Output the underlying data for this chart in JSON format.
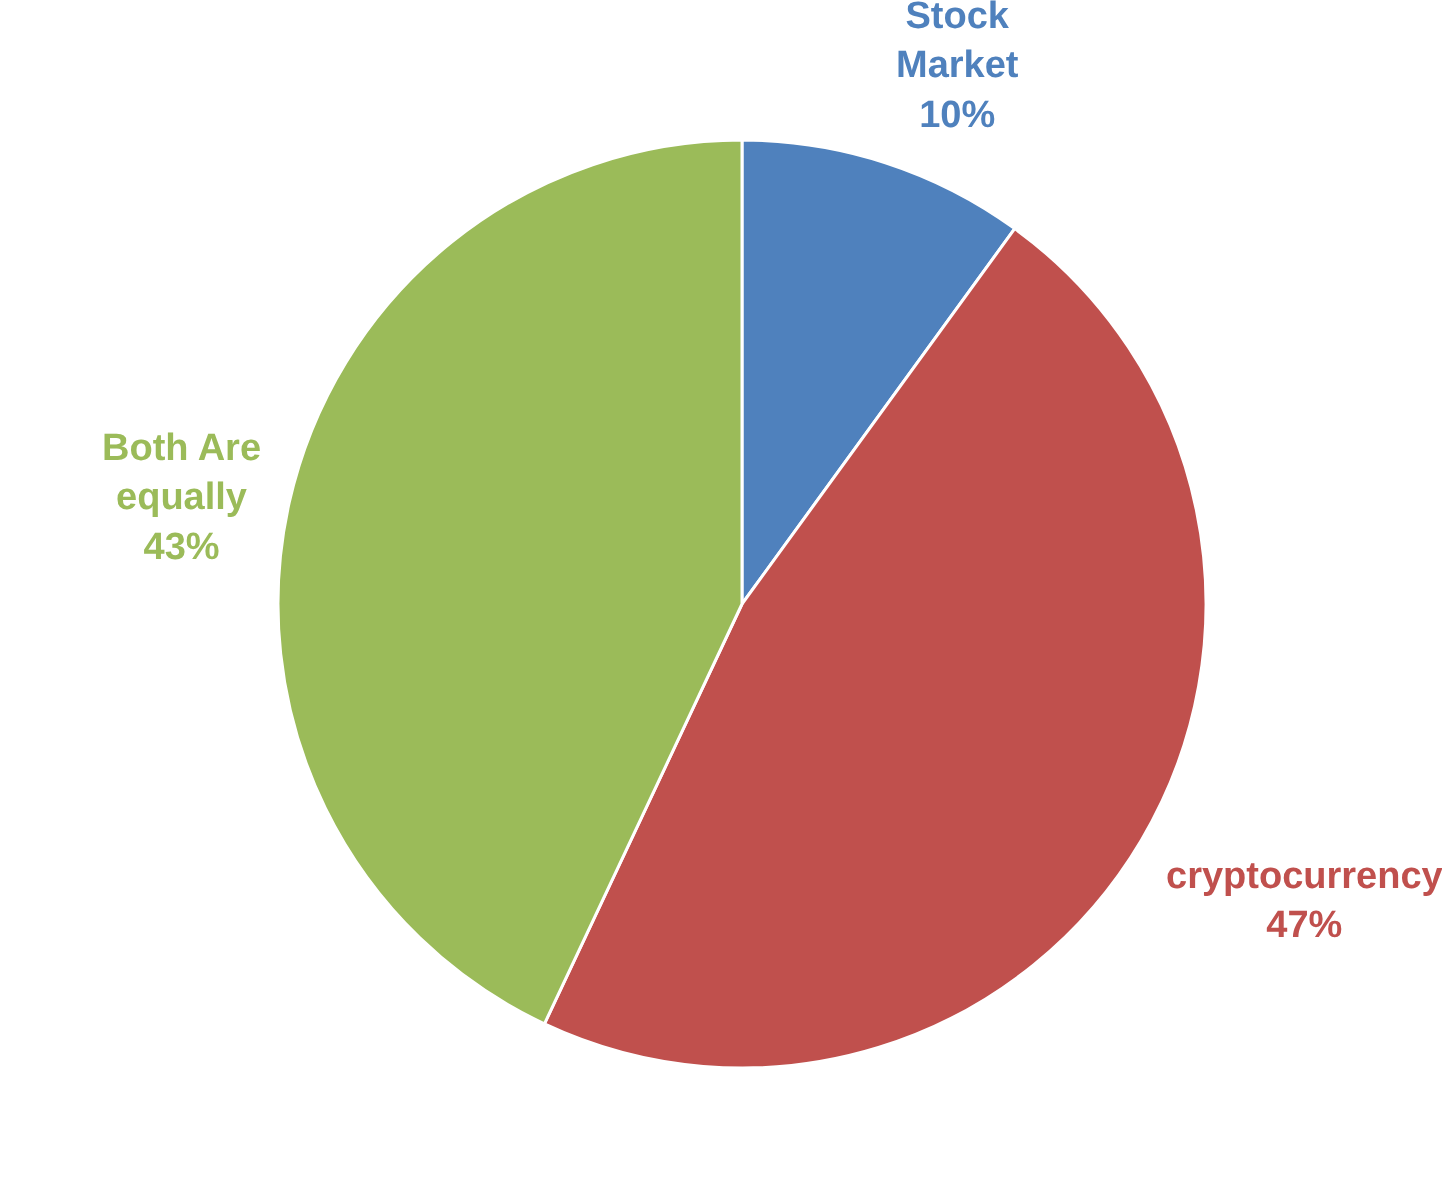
{
  "chart_data": {
    "type": "pie",
    "categories": [
      "Stock Market",
      "cryptocurrency",
      "Both Are equally"
    ],
    "values": [
      10,
      47,
      43
    ],
    "colors": [
      "#4f81bd",
      "#c0504d",
      "#9bbb59"
    ],
    "value_labels": [
      "10%",
      "47%",
      "43%"
    ],
    "legend": false
  }
}
